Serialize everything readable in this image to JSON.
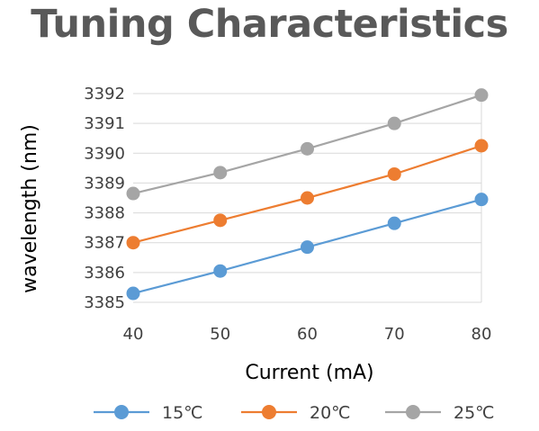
{
  "chart_data": {
    "type": "line",
    "title": "Tuning Characteristics",
    "xlabel": "Current (mA)",
    "ylabel": "wavelength (nm)",
    "x": [
      40,
      50,
      60,
      70,
      80
    ],
    "xlim": [
      40,
      80
    ],
    "ylim": [
      3385,
      3392
    ],
    "yticks": [
      3385,
      3386,
      3387,
      3388,
      3389,
      3390,
      3391,
      3392
    ],
    "grid": true,
    "legend": "bottom",
    "series": [
      {
        "name": "15℃",
        "color": "#5B9BD5",
        "values": [
          3385.3,
          3386.05,
          3386.85,
          3387.65,
          3388.45
        ]
      },
      {
        "name": "20℃",
        "color": "#ED7D31",
        "values": [
          3387.0,
          3387.75,
          3388.5,
          3389.3,
          3390.25
        ]
      },
      {
        "name": "25℃",
        "color": "#A5A5A5",
        "values": [
          3388.65,
          3389.35,
          3390.15,
          3391.0,
          3391.95
        ]
      }
    ]
  }
}
